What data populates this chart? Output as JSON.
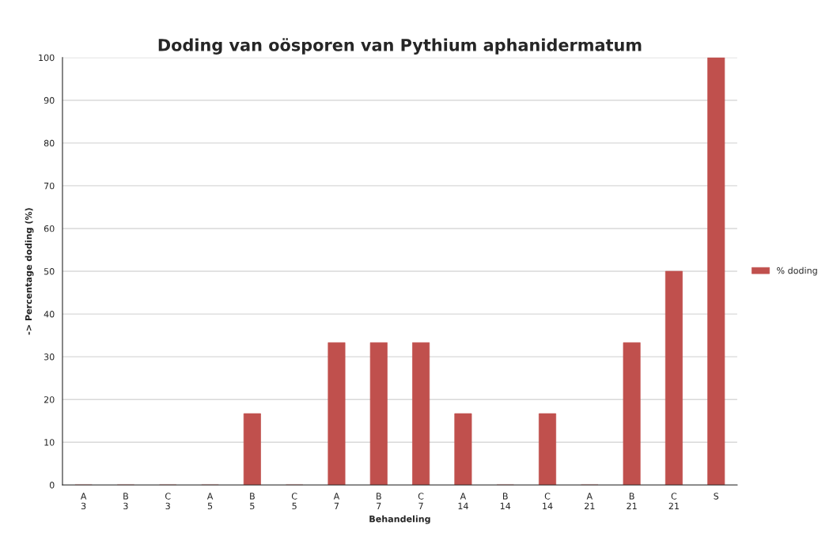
{
  "chart_data": {
    "type": "bar",
    "title": "Doding van oösporen van Pythium aphanidermatum",
    "xlabel": "Behandeling",
    "ylabel": "-> Percentage doding (%)",
    "categories": [
      "A\n3",
      "B\n3",
      "C\n3",
      "A\n5",
      "B\n5",
      "C\n5",
      "A\n7",
      "B\n7",
      "C\n7",
      "A\n14",
      "B\n14",
      "C\n14",
      "A\n21",
      "B\n21",
      "C\n21",
      "S"
    ],
    "series": [
      {
        "name": "% doding",
        "color": "#c0504d",
        "values": [
          0,
          0,
          0,
          0,
          16.7,
          0,
          33.3,
          33.3,
          33.3,
          16.7,
          0,
          16.7,
          0,
          33.3,
          50,
          100
        ]
      }
    ],
    "ylim": [
      0,
      100
    ],
    "yticks": [
      0,
      10,
      20,
      30,
      40,
      50,
      60,
      70,
      80,
      90,
      100
    ],
    "grid": "y",
    "legend": "right"
  }
}
